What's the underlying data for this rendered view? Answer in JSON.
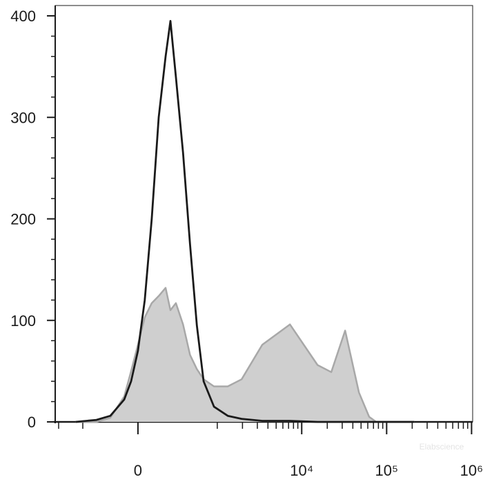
{
  "chart_data": {
    "type": "area",
    "x": [
      -616,
      -325,
      -194,
      -90,
      -44,
      0,
      44,
      90,
      140,
      194,
      236,
      288,
      366,
      455,
      559,
      680,
      911,
      1336,
      1954,
      3430,
      7270,
      15360,
      22280,
      32450,
      47200,
      62300,
      75300,
      211000
    ],
    "series": [
      {
        "color": "#1a1a1a",
        "fill": false,
        "values": [
          0,
          2,
          6,
          22,
          40,
          70,
          120,
          200,
          300,
          360,
          395,
          340,
          265,
          175,
          95,
          40,
          15,
          6,
          3,
          1,
          1,
          0,
          0,
          0,
          0,
          0,
          0,
          0
        ]
      },
      {
        "color": "#a8a8a8",
        "fill": "#cfcfcf",
        "values": [
          0,
          0,
          4,
          25,
          50,
          76,
          103,
          117,
          124,
          132,
          110,
          117,
          96,
          66,
          52,
          42,
          35,
          35,
          42,
          76,
          96,
          56,
          49,
          90,
          29,
          5,
          0,
          0
        ]
      }
    ],
    "xscale": {
      "type": "arcsinh",
      "cofactor": 236
    },
    "xlim": [
      -1100,
      1030000
    ],
    "xticks": [
      {
        "value": 0,
        "label": "0"
      },
      {
        "value": 10000,
        "label": "10⁴"
      },
      {
        "value": 100000,
        "label": "10⁵"
      },
      {
        "value": 1000000,
        "label": "10⁶"
      }
    ],
    "xminorticks": [
      -1000,
      -500,
      1000,
      2000,
      3000,
      4000,
      5000,
      6000,
      7000,
      8000,
      9000,
      20000,
      30000,
      40000,
      50000,
      60000,
      70000,
      80000,
      90000,
      200000,
      300000,
      400000,
      500000,
      600000,
      700000,
      800000,
      900000
    ],
    "ylim": [
      0,
      400
    ],
    "yticks": [
      0,
      100,
      200,
      300,
      400
    ],
    "yminorticks": [
      20,
      40,
      60,
      80,
      120,
      140,
      160,
      180,
      220,
      240,
      260,
      280,
      320,
      340,
      360,
      380
    ],
    "watermark": "Elabscience"
  }
}
